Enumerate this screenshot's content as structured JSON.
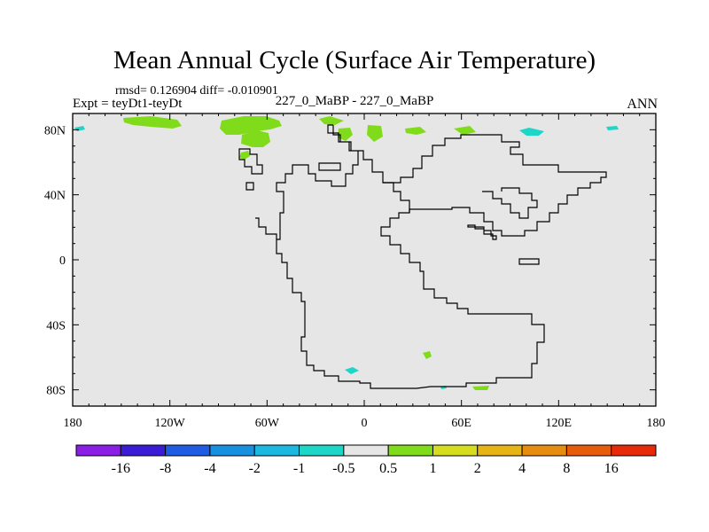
{
  "title": "Mean Annual Cycle (Surface Air Temperature)",
  "stats": {
    "rmsd_label": "rmsd=",
    "rmsd_value": "0.126904",
    "diff_label": "diff=",
    "diff_value": "-0.010901"
  },
  "experiment": "Expt = teyDt1-teyDt",
  "comparison": "227_0_MaBP - 227_0_MaBP",
  "season": "ANN",
  "map": {
    "projection": "cylindrical-equidistant",
    "lon_range": [
      -180,
      180
    ],
    "lat_range": [
      -90,
      90
    ],
    "lon_ticks": [
      {
        "value": -180,
        "label": "180"
      },
      {
        "value": -120,
        "label": "120W"
      },
      {
        "value": -60,
        "label": "60W"
      },
      {
        "value": 0,
        "label": "0"
      },
      {
        "value": 60,
        "label": "60E"
      },
      {
        "value": 120,
        "label": "120E"
      },
      {
        "value": 180,
        "label": "180"
      }
    ],
    "lat_ticks": [
      {
        "value": 80,
        "label": "80N"
      },
      {
        "value": 40,
        "label": "40N"
      },
      {
        "value": 0,
        "label": "0"
      },
      {
        "value": -40,
        "label": "40S"
      },
      {
        "value": -80,
        "label": "80S"
      }
    ],
    "background_color": "#e6e6e6",
    "coastline_color": "#000000"
  },
  "colorbar": {
    "boundaries": [
      "-16",
      "-8",
      "-4",
      "-2",
      "-1",
      "-0.5",
      "0.5",
      "1",
      "2",
      "4",
      "8",
      "16"
    ],
    "colors": [
      "#8a1fe6",
      "#3a1cd6",
      "#1f5ce3",
      "#1890e0",
      "#1cb8e0",
      "#1cd6c8",
      "#e6e6e6",
      "#80dc1a",
      "#d6dc1e",
      "#e6b414",
      "#e68c0e",
      "#e65c0a",
      "#e62a0a"
    ]
  }
}
